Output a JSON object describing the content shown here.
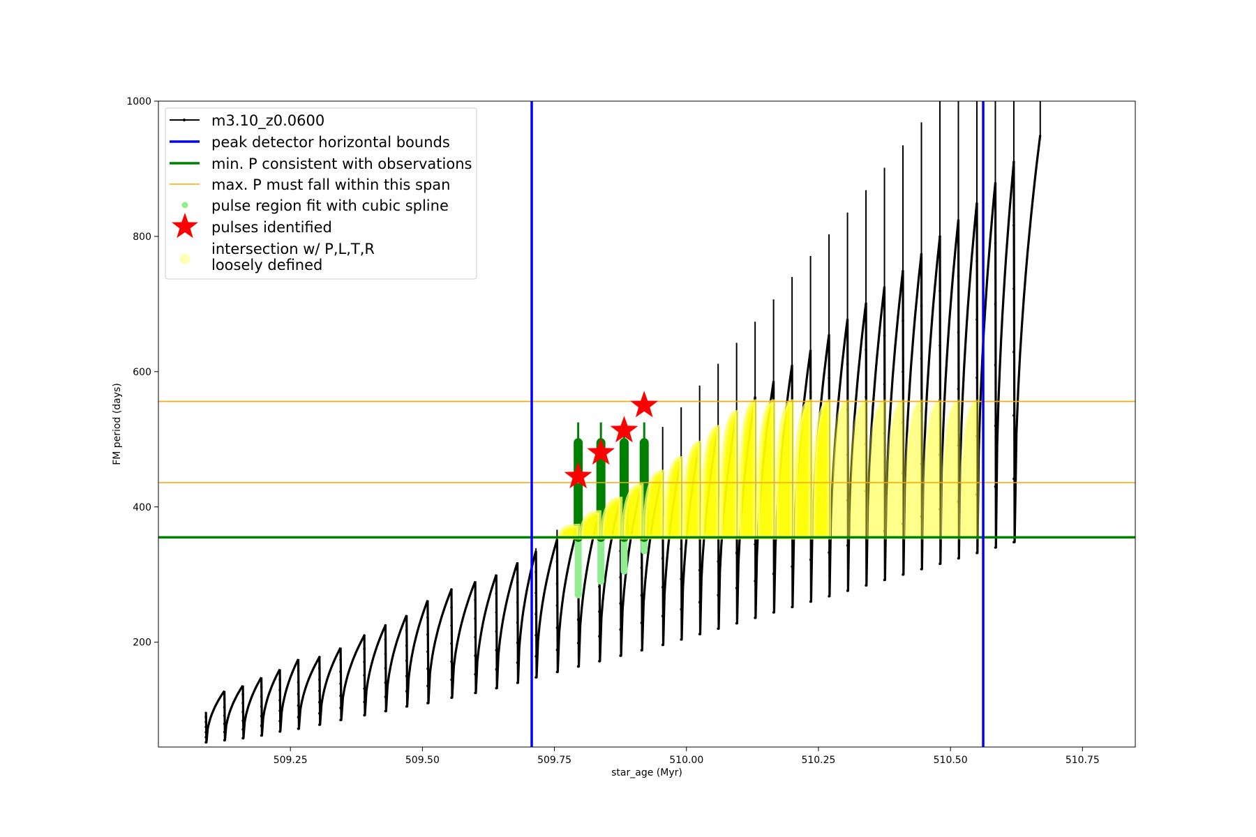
{
  "chart_data": {
    "type": "line",
    "xlabel": "star_age (Myr)",
    "ylabel": "FM period (days)",
    "xlim": [
      509.0,
      510.85
    ],
    "ylim": [
      45,
      1000
    ],
    "x_ticks": [
      509.25,
      509.5,
      509.75,
      510.0,
      510.25,
      510.5,
      510.75
    ],
    "x_tick_labels": [
      "509.25",
      "509.50",
      "509.75",
      "510.00",
      "510.25",
      "510.50",
      "510.75"
    ],
    "y_ticks": [
      200,
      400,
      600,
      800,
      1000
    ],
    "y_tick_labels": [
      "200",
      "400",
      "600",
      "800",
      "1000"
    ],
    "grid": false,
    "legend_position": "upper-left",
    "legend": [
      {
        "label": "m3.10_z0.0600",
        "kind": "line-marker",
        "color": "#000000"
      },
      {
        "label": "peak detector horizontal bounds",
        "kind": "line",
        "color": "#0000ff"
      },
      {
        "label": "min. P consistent with observations",
        "kind": "line",
        "color": "#008000"
      },
      {
        "label": "max. P must fall within this span",
        "kind": "line",
        "color": "#ffa500"
      },
      {
        "label": "pulse region fit with cubic spline",
        "kind": "dot",
        "color": "#90ee90"
      },
      {
        "label": "pulses identified",
        "kind": "star",
        "color": "#ff0000"
      },
      {
        "label": "intersection w/ P,L,T,R",
        "label2": "loosely defined",
        "kind": "dot",
        "color": "#ffff99"
      }
    ],
    "vertical_bounds": [
      509.707,
      510.562
    ],
    "min_period": 355,
    "max_period_span": [
      436,
      556
    ],
    "series": [
      {
        "name": "m3.10_z0.0600",
        "color": "#000000",
        "pulses": [
          {
            "start": 509.09,
            "end": 509.125,
            "min": 52,
            "end_value": 128
          },
          {
            "start": 509.125,
            "end": 509.16,
            "min": 55,
            "end_value": 136
          },
          {
            "start": 509.16,
            "end": 509.195,
            "min": 58,
            "end_value": 148
          },
          {
            "start": 509.195,
            "end": 509.23,
            "min": 62,
            "end_value": 160
          },
          {
            "start": 509.23,
            "end": 509.265,
            "min": 68,
            "end_value": 175
          },
          {
            "start": 509.265,
            "end": 509.305,
            "min": 72,
            "end_value": 178
          },
          {
            "start": 509.305,
            "end": 509.345,
            "min": 78,
            "end_value": 192
          },
          {
            "start": 509.345,
            "end": 509.39,
            "min": 85,
            "end_value": 210
          },
          {
            "start": 509.39,
            "end": 509.43,
            "min": 92,
            "end_value": 225
          },
          {
            "start": 509.43,
            "end": 509.47,
            "min": 98,
            "end_value": 240
          },
          {
            "start": 509.47,
            "end": 509.51,
            "min": 105,
            "end_value": 262
          },
          {
            "start": 509.51,
            "end": 509.555,
            "min": 110,
            "end_value": 278
          },
          {
            "start": 509.555,
            "end": 509.6,
            "min": 118,
            "end_value": 290
          },
          {
            "start": 509.6,
            "end": 509.64,
            "min": 125,
            "end_value": 300
          },
          {
            "start": 509.64,
            "end": 509.68,
            "min": 132,
            "end_value": 318
          },
          {
            "start": 509.68,
            "end": 509.715,
            "min": 140,
            "end_value": 335
          },
          {
            "start": 509.715,
            "end": 509.755,
            "min": 148,
            "end_value": 352
          },
          {
            "start": 509.755,
            "end": 509.795,
            "min": 156,
            "end_value": 372
          },
          {
            "start": 509.795,
            "end": 509.835,
            "min": 164,
            "end_value": 392
          },
          {
            "start": 509.835,
            "end": 509.875,
            "min": 172,
            "end_value": 412
          },
          {
            "start": 509.875,
            "end": 509.915,
            "min": 180,
            "end_value": 432
          },
          {
            "start": 509.915,
            "end": 509.955,
            "min": 188,
            "end_value": 452
          },
          {
            "start": 509.955,
            "end": 509.99,
            "min": 196,
            "end_value": 472
          },
          {
            "start": 509.99,
            "end": 510.025,
            "min": 204,
            "end_value": 495
          },
          {
            "start": 510.025,
            "end": 510.06,
            "min": 212,
            "end_value": 518
          },
          {
            "start": 510.06,
            "end": 510.095,
            "min": 220,
            "end_value": 540
          },
          {
            "start": 510.095,
            "end": 510.13,
            "min": 228,
            "end_value": 562
          },
          {
            "start": 510.13,
            "end": 510.165,
            "min": 236,
            "end_value": 586
          },
          {
            "start": 510.165,
            "end": 510.2,
            "min": 244,
            "end_value": 610
          },
          {
            "start": 510.2,
            "end": 510.235,
            "min": 252,
            "end_value": 632
          },
          {
            "start": 510.235,
            "end": 510.27,
            "min": 260,
            "end_value": 655
          },
          {
            "start": 510.27,
            "end": 510.305,
            "min": 268,
            "end_value": 678
          },
          {
            "start": 510.305,
            "end": 510.34,
            "min": 276,
            "end_value": 702
          },
          {
            "start": 510.34,
            "end": 510.375,
            "min": 284,
            "end_value": 726
          },
          {
            "start": 510.375,
            "end": 510.41,
            "min": 292,
            "end_value": 750
          },
          {
            "start": 510.41,
            "end": 510.445,
            "min": 300,
            "end_value": 775
          },
          {
            "start": 510.445,
            "end": 510.48,
            "min": 308,
            "end_value": 800
          },
          {
            "start": 510.48,
            "end": 510.515,
            "min": 316,
            "end_value": 825
          },
          {
            "start": 510.515,
            "end": 510.55,
            "min": 324,
            "end_value": 850
          },
          {
            "start": 510.55,
            "end": 510.585,
            "min": 332,
            "end_value": 880
          },
          {
            "start": 510.585,
            "end": 510.62,
            "min": 340,
            "end_value": 910
          },
          {
            "start": 510.62,
            "end": 510.67,
            "min": 348,
            "end_value": 950
          }
        ]
      },
      {
        "name": "pulses identified",
        "color": "#ff0000",
        "x": [
          509.795,
          509.838,
          509.882,
          509.92
        ],
        "y": [
          445,
          480,
          513,
          550
        ]
      }
    ]
  }
}
